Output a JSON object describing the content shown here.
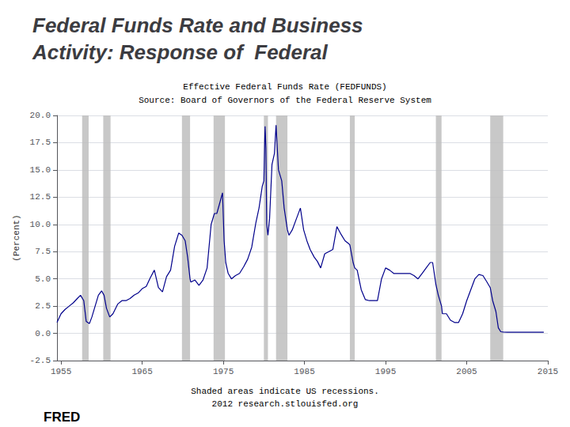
{
  "chart_data": {
    "type": "line",
    "title": [
      "Federal Funds Rate and Business",
      "Activity: Response of  Federal"
    ],
    "subtitle": [
      "Effective Federal Funds Rate (FEDFUNDS)",
      "Source: Board of Governors of the Federal Reserve System"
    ],
    "ylabel": "(Percent)",
    "annotations": [
      "Shaded areas indicate US recessions.",
      "2012 research.stlouisfed.org",
      "FRED"
    ],
    "color": "#00008B",
    "grid": true,
    "xlim": [
      1954.5,
      2015
    ],
    "xticks": [
      1955,
      1965,
      1975,
      1985,
      1995,
      2005,
      2015
    ],
    "ylim": [
      -2.5,
      20.0
    ],
    "yticks": [
      -2.5,
      {
        "value": 0.0,
        "label": "0.0"
      },
      2.5,
      {
        "value": 5.0,
        "label": "5.0"
      },
      7.5,
      {
        "value": 10.0,
        "label": "10.0"
      },
      12.5,
      {
        "value": 15.0,
        "label": "15.0"
      },
      17.5,
      {
        "value": 20.0,
        "label": "20.0"
      }
    ],
    "recessions": [
      [
        1957.6,
        1958.4
      ],
      [
        1960.2,
        1961.1
      ],
      [
        1969.9,
        1970.9
      ],
      [
        1973.8,
        1975.2
      ],
      [
        1980.0,
        1980.5
      ],
      [
        1981.5,
        1982.9
      ],
      [
        1990.6,
        1991.2
      ],
      [
        2001.2,
        2001.9
      ],
      [
        2007.9,
        2009.5
      ]
    ],
    "x": [
      1954.5,
      1955.0,
      1955.5,
      1956.0,
      1956.5,
      1957.0,
      1957.4,
      1957.8,
      1958.1,
      1958.5,
      1958.8,
      1959.2,
      1959.6,
      1960.0,
      1960.3,
      1960.6,
      1961.0,
      1961.4,
      1962.0,
      1962.5,
      1963.0,
      1963.5,
      1964.0,
      1964.5,
      1965.0,
      1965.5,
      1966.0,
      1966.5,
      1967.0,
      1967.5,
      1968.0,
      1968.5,
      1969.0,
      1969.5,
      1969.9,
      1970.3,
      1970.6,
      1970.9,
      1971.0,
      1971.5,
      1972.0,
      1972.5,
      1973.0,
      1973.5,
      1973.9,
      1974.2,
      1974.5,
      1974.9,
      1975.1,
      1975.3,
      1975.6,
      1976.0,
      1976.5,
      1977.0,
      1977.5,
      1978.0,
      1978.5,
      1979.0,
      1979.4,
      1979.8,
      1980.0,
      1980.1,
      1980.15,
      1980.25,
      1980.35,
      1980.5,
      1980.7,
      1981.0,
      1981.3,
      1981.5,
      1981.65,
      1981.8,
      1982.2,
      1982.5,
      1982.9,
      1983.1,
      1983.5,
      1984.0,
      1984.5,
      1984.9,
      1985.3,
      1985.7,
      1986.2,
      1986.6,
      1987.0,
      1987.5,
      1988.0,
      1988.5,
      1989.0,
      1989.5,
      1990.0,
      1990.5,
      1990.6,
      1991.0,
      1991.2,
      1991.5,
      1992.0,
      1992.5,
      1993.0,
      1993.5,
      1994.0,
      1994.5,
      1995.0,
      1995.5,
      1996.0,
      1996.5,
      1997.0,
      1997.5,
      1998.0,
      1998.5,
      1999.0,
      1999.5,
      2000.0,
      2000.5,
      2000.8,
      2001.0,
      2001.2,
      2001.5,
      2001.9,
      2002.0,
      2002.5,
      2003.0,
      2003.5,
      2004.0,
      2004.5,
      2005.0,
      2005.5,
      2006.0,
      2006.5,
      2007.0,
      2007.5,
      2007.9,
      2008.2,
      2008.6,
      2008.9,
      2009.2,
      2009.5,
      2010.0,
      2010.5,
      2011.0,
      2011.5,
      2012.0,
      2012.5,
      2013.0,
      2013.5,
      2014.0,
      2014.5
    ],
    "values": [
      1.0,
      1.8,
      2.2,
      2.5,
      2.8,
      3.2,
      3.5,
      3.0,
      1.1,
      0.9,
      1.5,
      2.5,
      3.5,
      3.9,
      3.5,
      2.3,
      1.5,
      1.8,
      2.7,
      3.0,
      3.0,
      3.2,
      3.5,
      3.7,
      4.1,
      4.3,
      5.1,
      5.8,
      4.2,
      3.8,
      5.2,
      5.8,
      8.0,
      9.2,
      9.0,
      8.5,
      7.0,
      5.0,
      4.7,
      4.9,
      4.4,
      4.9,
      6.0,
      10.0,
      11.0,
      11.0,
      11.8,
      12.9,
      8.5,
      6.5,
      5.5,
      5.0,
      5.3,
      5.5,
      6.1,
      6.8,
      7.9,
      10.1,
      11.5,
      13.5,
      14.0,
      17.6,
      19.0,
      17.0,
      10.0,
      9.0,
      10.5,
      15.5,
      16.5,
      19.1,
      17.0,
      15.0,
      14.0,
      11.5,
      9.5,
      9.0,
      9.5,
      10.5,
      11.5,
      9.5,
      8.5,
      7.7,
      7.0,
      6.6,
      6.0,
      7.3,
      7.5,
      7.7,
      9.8,
      9.1,
      8.5,
      8.2,
      8.1,
      6.5,
      6.0,
      5.8,
      4.0,
      3.1,
      3.0,
      3.0,
      3.0,
      5.0,
      6.0,
      5.8,
      5.5,
      5.5,
      5.5,
      5.5,
      5.5,
      5.3,
      5.0,
      5.5,
      6.0,
      6.5,
      6.5,
      5.5,
      4.5,
      3.5,
      2.5,
      1.8,
      1.8,
      1.2,
      1.0,
      1.0,
      1.8,
      3.0,
      4.0,
      5.0,
      5.4,
      5.3,
      4.7,
      4.2,
      3.0,
      2.0,
      0.5,
      0.15,
      0.12,
      0.1,
      0.1,
      0.1,
      0.1,
      0.1,
      0.1,
      0.1,
      0.1,
      0.1,
      0.1
    ]
  }
}
